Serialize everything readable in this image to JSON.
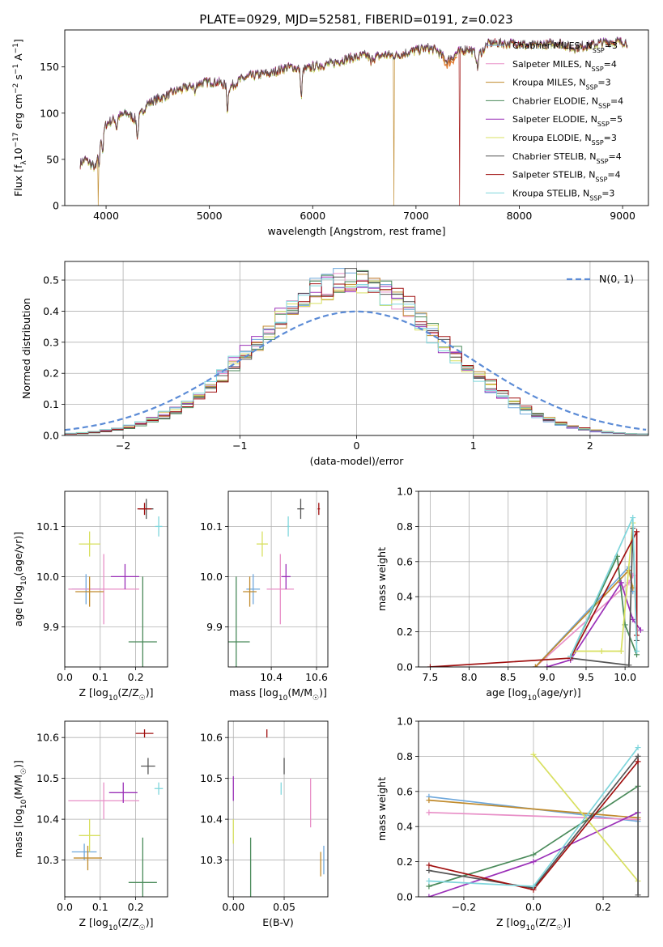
{
  "figure": {
    "title": "PLATE=0929, MJD=52581, FIBERID=0191, z=0.023"
  },
  "colors": {
    "Chabrier MILES": "#6fa8dc",
    "Salpeter MILES": "#e88fc7",
    "Kroupa MILES": "#c08a2c",
    "Chabrier ELODIE": "#4a8a5a",
    "Salpeter ELODIE": "#9b30b8",
    "Kroupa ELODIE": "#d8e060",
    "Chabrier STELIB": "#555555",
    "Salpeter STELIB": "#a01010",
    "Kroupa STELIB": "#7fd6dc",
    "spectrum_orange": "#e07a30",
    "gaussian": "#5b8bd6",
    "grid": "#b0b0b0"
  },
  "chart_data": [
    {
      "id": "spectrum",
      "type": "line",
      "title": "PLATE=0929, MJD=52581, FIBERID=0191, z=0.023",
      "xlabel": "wavelength [Angstrom, rest frame]",
      "ylabel": "Flux [f_λ 10^-17 erg cm^-2 s^-1 A^-1]",
      "xlim": [
        3600,
        9250
      ],
      "ylim": [
        0,
        190
      ],
      "xticks": [
        4000,
        5000,
        6000,
        7000,
        8000,
        9000
      ],
      "yticks": [
        0,
        50,
        100,
        150
      ],
      "grid": false,
      "legend": "top-right",
      "series": [
        {
          "name": "Chabrier MILES",
          "nssp": "3"
        },
        {
          "name": "Salpeter MILES",
          "nssp": "4"
        },
        {
          "name": "Kroupa MILES",
          "nssp": "3"
        },
        {
          "name": "Chabrier ELODIE",
          "nssp": "4"
        },
        {
          "name": "Salpeter ELODIE",
          "nssp": "5"
        },
        {
          "name": "Kroupa ELODIE",
          "nssp": "3"
        },
        {
          "name": "Chabrier STELIB",
          "nssp": "4"
        },
        {
          "name": "Salpeter STELIB",
          "nssp": "4"
        },
        {
          "name": "Kroupa STELIB",
          "nssp": "3"
        }
      ],
      "continuum": [
        [
          3750,
          45
        ],
        [
          3800,
          50
        ],
        [
          3850,
          45
        ],
        [
          3900,
          40
        ],
        [
          3950,
          75
        ],
        [
          4000,
          88
        ],
        [
          4100,
          95
        ],
        [
          4200,
          100
        ],
        [
          4300,
          92
        ],
        [
          4400,
          110
        ],
        [
          4500,
          115
        ],
        [
          4600,
          120
        ],
        [
          4700,
          125
        ],
        [
          4800,
          128
        ],
        [
          4900,
          132
        ],
        [
          5000,
          134
        ],
        [
          5100,
          133
        ],
        [
          5200,
          128
        ],
        [
          5300,
          136
        ],
        [
          5400,
          140
        ],
        [
          5500,
          142
        ],
        [
          5600,
          143
        ],
        [
          5700,
          148
        ],
        [
          5800,
          150
        ],
        [
          5900,
          146
        ],
        [
          6000,
          150
        ],
        [
          6100,
          152
        ],
        [
          6200,
          154
        ],
        [
          6300,
          158
        ],
        [
          6400,
          160
        ],
        [
          6500,
          162
        ],
        [
          6600,
          160
        ],
        [
          6700,
          163
        ],
        [
          6800,
          162
        ],
        [
          6900,
          165
        ],
        [
          7000,
          168
        ],
        [
          7100,
          170
        ],
        [
          7200,
          168
        ],
        [
          7300,
          156
        ],
        [
          7400,
          165
        ],
        [
          7500,
          170
        ],
        [
          7600,
          162
        ],
        [
          7700,
          175
        ],
        [
          7800,
          176
        ],
        [
          7900,
          175
        ],
        [
          8000,
          176
        ],
        [
          8100,
          172
        ],
        [
          8200,
          174
        ],
        [
          8300,
          175
        ],
        [
          8400,
          176
        ],
        [
          8500,
          170
        ],
        [
          8600,
          172
        ],
        [
          8700,
          174
        ],
        [
          8800,
          176
        ],
        [
          8900,
          177
        ],
        [
          9000,
          177
        ],
        [
          9050,
          176
        ]
      ],
      "absorption": [
        [
          3933,
          20
        ],
        [
          3968,
          22
        ],
        [
          4102,
          12
        ],
        [
          4304,
          20
        ],
        [
          4861,
          10
        ],
        [
          5175,
          26
        ],
        [
          5890,
          30
        ],
        [
          6563,
          8
        ],
        [
          7595,
          15
        ]
      ],
      "dropouts": [
        {
          "x": 3925,
          "series": "Kroupa MILES"
        },
        {
          "x": 6785,
          "series": "Kroupa MILES"
        },
        {
          "x": 7420,
          "series": "Salpeter STELIB"
        }
      ]
    },
    {
      "id": "residuals",
      "type": "bar",
      "xlabel": "(data-model)/error",
      "ylabel": "Normed distribution",
      "xlim": [
        -2.5,
        2.5
      ],
      "ylim": [
        0,
        0.56
      ],
      "xticks": [
        -2,
        -1,
        0,
        1,
        2
      ],
      "yticks": [
        0.0,
        0.1,
        0.2,
        0.3,
        0.4,
        0.5
      ],
      "grid": true,
      "legend": "top-right",
      "legend_label": "N(0, 1)",
      "bin_width": 0.1,
      "note": "step histograms of 9 fits, one per SSP model"
    },
    {
      "id": "age_vs_Z",
      "type": "scatter",
      "xlabel": "Z [log10(Z/Z☉)]",
      "ylabel": "age [log10(age/yr)]",
      "xlim": [
        0,
        0.29
      ],
      "ylim": [
        9.82,
        10.17
      ],
      "xticks": [
        0.0,
        0.1,
        0.2
      ],
      "yticks": [
        9.9,
        10.0,
        10.1
      ],
      "grid": true,
      "points": [
        {
          "series": "Chabrier MILES",
          "x": 0.06,
          "y": 9.975,
          "xerr": 0.04,
          "yerr": 0.03
        },
        {
          "series": "Salpeter MILES",
          "x": 0.11,
          "y": 9.975,
          "xerr": 0.1,
          "yerr": 0.07
        },
        {
          "series": "Kroupa MILES",
          "x": 0.07,
          "y": 9.97,
          "xerr": 0.04,
          "yerr": 0.03
        },
        {
          "series": "Chabrier ELODIE",
          "x": 0.22,
          "y": 9.87,
          "xerr": 0.04,
          "yerr": 0.13
        },
        {
          "series": "Salpeter ELODIE",
          "x": 0.17,
          "y": 10.0,
          "xerr": 0.04,
          "yerr": 0.025
        },
        {
          "series": "Kroupa ELODIE",
          "x": 0.07,
          "y": 10.065,
          "xerr": 0.03,
          "yerr": 0.025
        },
        {
          "series": "Chabrier STELIB",
          "x": 0.23,
          "y": 10.135,
          "xerr": 0.02,
          "yerr": 0.02
        },
        {
          "series": "Salpeter STELIB",
          "x": 0.225,
          "y": 10.135,
          "xerr": 0.02,
          "yerr": 0.012
        },
        {
          "series": "Kroupa STELIB",
          "x": 0.265,
          "y": 10.1,
          "xerr": 0.01,
          "yerr": 0.02
        }
      ]
    },
    {
      "id": "age_vs_mass",
      "type": "scatter",
      "xlabel": "mass [log10(M/M☉)]",
      "ylabel": "",
      "xlim": [
        10.21,
        10.65
      ],
      "ylim": [
        9.82,
        10.17
      ],
      "xticks": [
        10.4,
        10.6
      ],
      "yticks": [
        9.9,
        10.0,
        10.1
      ],
      "grid": true,
      "points": [
        {
          "series": "Chabrier MILES",
          "x": 10.32,
          "y": 9.975,
          "xerr": 0.03,
          "yerr": 0.03
        },
        {
          "series": "Salpeter MILES",
          "x": 10.44,
          "y": 9.975,
          "xerr": 0.06,
          "yerr": 0.07
        },
        {
          "series": "Kroupa MILES",
          "x": 10.305,
          "y": 9.97,
          "xerr": 0.03,
          "yerr": 0.03
        },
        {
          "series": "Chabrier ELODIE",
          "x": 10.245,
          "y": 9.87,
          "xerr": 0.06,
          "yerr": 0.13
        },
        {
          "series": "Salpeter ELODIE",
          "x": 10.465,
          "y": 10.0,
          "xerr": 0.02,
          "yerr": 0.025
        },
        {
          "series": "Kroupa ELODIE",
          "x": 10.36,
          "y": 10.065,
          "xerr": 0.025,
          "yerr": 0.025
        },
        {
          "series": "Chabrier STELIB",
          "x": 10.53,
          "y": 10.135,
          "xerr": 0.015,
          "yerr": 0.02
        },
        {
          "series": "Salpeter STELIB",
          "x": 10.61,
          "y": 10.135,
          "xerr": 0.005,
          "yerr": 0.012
        },
        {
          "series": "Kroupa STELIB",
          "x": 10.475,
          "y": 10.1,
          "xerr": 0.005,
          "yerr": 0.02
        }
      ]
    },
    {
      "id": "weight_vs_age",
      "type": "line",
      "xlabel": "age [log10(age/yr)]",
      "ylabel": "mass weight",
      "xlim": [
        7.35,
        10.3
      ],
      "ylim": [
        0,
        1.0
      ],
      "xticks": [
        7.5,
        8.0,
        8.5,
        9.0,
        9.5,
        10.0
      ],
      "yticks": [
        0.0,
        0.2,
        0.4,
        0.6,
        0.8,
        1.0
      ],
      "grid": true,
      "series": [
        {
          "name": "Chabrier MILES",
          "x": [
            8.85,
            10.05,
            10.1
          ],
          "y": [
            0.0,
            0.57,
            0.43
          ]
        },
        {
          "name": "Salpeter MILES",
          "x": [
            8.85,
            10.05,
            10.1
          ],
          "y": [
            0.0,
            0.48,
            0.52
          ]
        },
        {
          "name": "Kroupa MILES",
          "x": [
            8.85,
            10.05,
            10.1
          ],
          "y": [
            0.0,
            0.55,
            0.45
          ]
        },
        {
          "name": "Chabrier ELODIE",
          "x": [
            9.3,
            9.9,
            10.0,
            10.15
          ],
          "y": [
            0.06,
            0.63,
            0.24,
            0.07
          ]
        },
        {
          "name": "Salpeter ELODIE",
          "x": [
            9.0,
            9.3,
            9.95,
            10.1,
            10.2
          ],
          "y": [
            0.0,
            0.04,
            0.48,
            0.27,
            0.21
          ]
        },
        {
          "name": "Kroupa ELODIE",
          "x": [
            9.35,
            9.7,
            9.95,
            10.1
          ],
          "y": [
            0.09,
            0.09,
            0.09,
            0.82
          ]
        },
        {
          "name": "Chabrier STELIB",
          "x": [
            9.3,
            10.05,
            10.1,
            10.15
          ],
          "y": [
            0.05,
            0.01,
            0.79,
            0.15
          ]
        },
        {
          "name": "Salpeter STELIB",
          "x": [
            7.5,
            9.3,
            10.15,
            10.15
          ],
          "y": [
            0.0,
            0.05,
            0.77,
            0.18
          ]
        },
        {
          "name": "Kroupa STELIB",
          "x": [
            9.3,
            10.1,
            10.15
          ],
          "y": [
            0.06,
            0.85,
            0.09
          ]
        }
      ]
    },
    {
      "id": "mass_vs_Z",
      "type": "scatter",
      "xlabel": "Z [log10(Z/Z☉)]",
      "ylabel": "mass [log10(M/M☉)]",
      "xlim": [
        0,
        0.29
      ],
      "ylim": [
        10.21,
        10.64
      ],
      "xticks": [
        0.0,
        0.1,
        0.2
      ],
      "yticks": [
        10.3,
        10.4,
        10.5,
        10.6
      ],
      "grid": true,
      "points": [
        {
          "series": "Chabrier MILES",
          "x": 0.055,
          "y": 10.32,
          "xerr": 0.035,
          "yerr": 0.02
        },
        {
          "series": "Salpeter MILES",
          "x": 0.11,
          "y": 10.445,
          "xerr": 0.1,
          "yerr": 0.045
        },
        {
          "series": "Kroupa MILES",
          "x": 0.065,
          "y": 10.305,
          "xerr": 0.04,
          "yerr": 0.03
        },
        {
          "series": "Chabrier ELODIE",
          "x": 0.22,
          "y": 10.245,
          "xerr": 0.04,
          "yerr": 0.11
        },
        {
          "series": "Salpeter ELODIE",
          "x": 0.165,
          "y": 10.465,
          "xerr": 0.04,
          "yerr": 0.025
        },
        {
          "series": "Kroupa ELODIE",
          "x": 0.07,
          "y": 10.36,
          "xerr": 0.03,
          "yerr": 0.04
        },
        {
          "series": "Chabrier STELIB",
          "x": 0.235,
          "y": 10.53,
          "xerr": 0.02,
          "yerr": 0.02
        },
        {
          "series": "Salpeter STELIB",
          "x": 0.225,
          "y": 10.61,
          "xerr": 0.025,
          "yerr": 0.01
        },
        {
          "series": "Kroupa STELIB",
          "x": 0.265,
          "y": 10.475,
          "xerr": 0.012,
          "yerr": 0.015
        }
      ]
    },
    {
      "id": "mass_vs_ebv",
      "type": "scatter",
      "xlabel": "E(B-V)",
      "ylabel": "",
      "xlim": [
        -0.005,
        0.093
      ],
      "ylim": [
        10.21,
        10.64
      ],
      "xticks": [
        0.0,
        0.05
      ],
      "yticks": [
        10.3,
        10.4,
        10.5,
        10.6
      ],
      "grid": true,
      "points": [
        {
          "series": "Chabrier MILES",
          "x": 0.089,
          "y": 10.3,
          "xerr": 0,
          "yerr": 0.035
        },
        {
          "series": "Salpeter MILES",
          "x": 0.076,
          "y": 10.44,
          "xerr": 0,
          "yerr": 0.06
        },
        {
          "series": "Kroupa MILES",
          "x": 0.086,
          "y": 10.29,
          "xerr": 0,
          "yerr": 0.03
        },
        {
          "series": "Chabrier ELODIE",
          "x": 0.017,
          "y": 10.27,
          "xerr": 0,
          "yerr": 0.085
        },
        {
          "series": "Salpeter ELODIE",
          "x": 0.0,
          "y": 10.475,
          "xerr": 0,
          "yerr": 0.03
        },
        {
          "series": "Kroupa ELODIE",
          "x": 0.0,
          "y": 10.37,
          "xerr": 0,
          "yerr": 0.03
        },
        {
          "series": "Chabrier STELIB",
          "x": 0.05,
          "y": 10.53,
          "xerr": 0,
          "yerr": 0.02
        },
        {
          "series": "Salpeter STELIB",
          "x": 0.033,
          "y": 10.61,
          "xerr": 0,
          "yerr": 0.01
        },
        {
          "series": "Kroupa STELIB",
          "x": 0.047,
          "y": 10.475,
          "xerr": 0,
          "yerr": 0.015
        }
      ]
    },
    {
      "id": "weight_vs_Z",
      "type": "line",
      "xlabel": "Z [log10(Z/Z☉)]",
      "ylabel": "mass weight",
      "xlim": [
        -0.33,
        0.33
      ],
      "ylim": [
        0,
        1.0
      ],
      "xticks": [
        -0.2,
        0.0,
        0.2
      ],
      "yticks": [
        0.0,
        0.2,
        0.4,
        0.6,
        0.8,
        1.0
      ],
      "grid": true,
      "series": [
        {
          "name": "Chabrier MILES",
          "x": [
            -0.3,
            0.3
          ],
          "y": [
            0.57,
            0.43
          ]
        },
        {
          "name": "Salpeter MILES",
          "x": [
            -0.3,
            0.3
          ],
          "y": [
            0.48,
            0.44
          ]
        },
        {
          "name": "Kroupa MILES",
          "x": [
            -0.3,
            0.3
          ],
          "y": [
            0.55,
            0.45
          ]
        },
        {
          "name": "Chabrier ELODIE",
          "x": [
            -0.3,
            0.0,
            0.3
          ],
          "y": [
            0.06,
            0.24,
            0.63
          ]
        },
        {
          "name": "Salpeter ELODIE",
          "x": [
            -0.3,
            0.0,
            0.3
          ],
          "y": [
            0.0,
            0.2,
            0.48
          ]
        },
        {
          "name": "Kroupa ELODIE",
          "x": [
            0.0,
            0.3
          ],
          "y": [
            0.81,
            0.09
          ]
        },
        {
          "name": "Chabrier STELIB",
          "x": [
            -0.3,
            0.0,
            0.3,
            0.3
          ],
          "y": [
            0.15,
            0.05,
            0.8,
            0.01
          ]
        },
        {
          "name": "Salpeter STELIB",
          "x": [
            -0.3,
            0.0,
            0.3
          ],
          "y": [
            0.18,
            0.04,
            0.77
          ]
        },
        {
          "name": "Kroupa STELIB",
          "x": [
            -0.3,
            0.0,
            0.3
          ],
          "y": [
            0.09,
            0.06,
            0.85
          ]
        }
      ]
    }
  ]
}
